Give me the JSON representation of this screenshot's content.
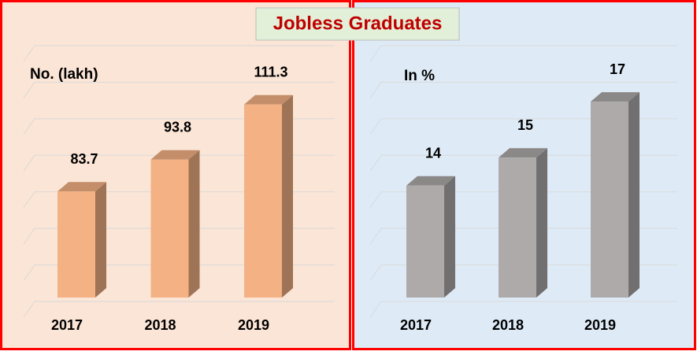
{
  "title": "Jobless Graduates",
  "chart_data": [
    {
      "type": "bar",
      "y_label": "No. (lakh)",
      "categories": [
        "2017",
        "2018",
        "2019"
      ],
      "values": [
        83.7,
        93.8,
        111.3
      ],
      "color": "#f4b183",
      "ylim": [
        50,
        130
      ]
    },
    {
      "type": "bar",
      "y_label": "In %",
      "categories": [
        "2017",
        "2018",
        "2019"
      ],
      "values": [
        14,
        15,
        17
      ],
      "color": "#aeaaaa",
      "ylim": [
        10,
        19
      ]
    }
  ]
}
